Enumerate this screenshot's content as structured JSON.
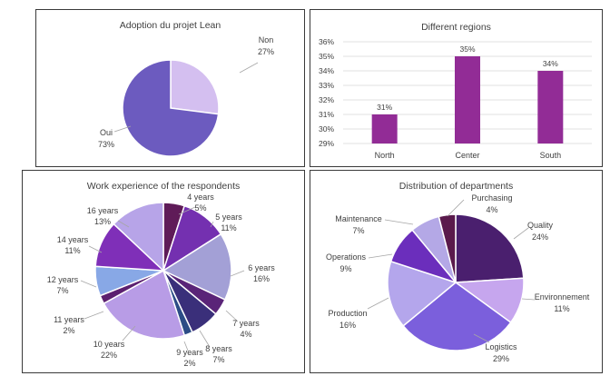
{
  "colors": {
    "pie1": [
      "#d4bff0",
      "#6c5bbf"
    ],
    "bar": "#922c96",
    "grid": "#d9d9d9",
    "pie3": [
      "#5f1b58",
      "#7430b0",
      "#a3a0d6",
      "#5a2478",
      "#3a2f7a",
      "#2c4c86",
      "#b89ce6",
      "#5c2070",
      "#88a8e6",
      "#7f2fb8",
      "#b7a4e8"
    ],
    "pie4": [
      "#4a1f6e",
      "#c6a6ee",
      "#7b5fdc",
      "#b4a6ec",
      "#6b2ebc",
      "#b4a8e6",
      "#5a1a4c"
    ]
  },
  "chart_data": [
    {
      "type": "pie",
      "title": "Adoption du projet Lean",
      "slices": [
        {
          "label": "Non",
          "value": 27,
          "pct": "27%"
        },
        {
          "label": "Oui",
          "value": 73,
          "pct": "73%"
        }
      ]
    },
    {
      "type": "bar",
      "title": "Different regions",
      "categories": [
        "North",
        "Center",
        "South"
      ],
      "values": [
        31,
        35,
        34
      ],
      "value_labels": [
        "31%",
        "35%",
        "34%"
      ],
      "ylim": [
        29,
        36
      ],
      "yticks": [
        "29%",
        "30%",
        "31%",
        "32%",
        "33%",
        "34%",
        "35%",
        "36%"
      ],
      "grid": true
    },
    {
      "type": "pie",
      "title": "Work experience of the respondents",
      "slices": [
        {
          "label": "4 years",
          "value": 5,
          "pct": "5%"
        },
        {
          "label": "5 years",
          "value": 11,
          "pct": "11%"
        },
        {
          "label": "6 years",
          "value": 16,
          "pct": "16%"
        },
        {
          "label": "7 years",
          "value": 4,
          "pct": "4%"
        },
        {
          "label": "8 years",
          "value": 7,
          "pct": "7%"
        },
        {
          "label": "9 years",
          "value": 2,
          "pct": "2%"
        },
        {
          "label": "10 years",
          "value": 22,
          "pct": "22%"
        },
        {
          "label": "11 years",
          "value": 2,
          "pct": "2%"
        },
        {
          "label": "12 years",
          "value": 7,
          "pct": "7%"
        },
        {
          "label": "14 years",
          "value": 11,
          "pct": "11%"
        },
        {
          "label": "16 years",
          "value": 13,
          "pct": "13%"
        }
      ]
    },
    {
      "type": "pie",
      "title": "Distribution of departments",
      "slices": [
        {
          "label": "Quality",
          "value": 24,
          "pct": "24%"
        },
        {
          "label": "Environnement",
          "value": 11,
          "pct": "11%"
        },
        {
          "label": "Logistics",
          "value": 29,
          "pct": "29%"
        },
        {
          "label": "Production",
          "value": 16,
          "pct": "16%"
        },
        {
          "label": "Operations",
          "value": 9,
          "pct": "9%"
        },
        {
          "label": "Maintenance",
          "value": 7,
          "pct": "7%"
        },
        {
          "label": "Purchasing",
          "value": 4,
          "pct": "4%"
        }
      ]
    }
  ]
}
